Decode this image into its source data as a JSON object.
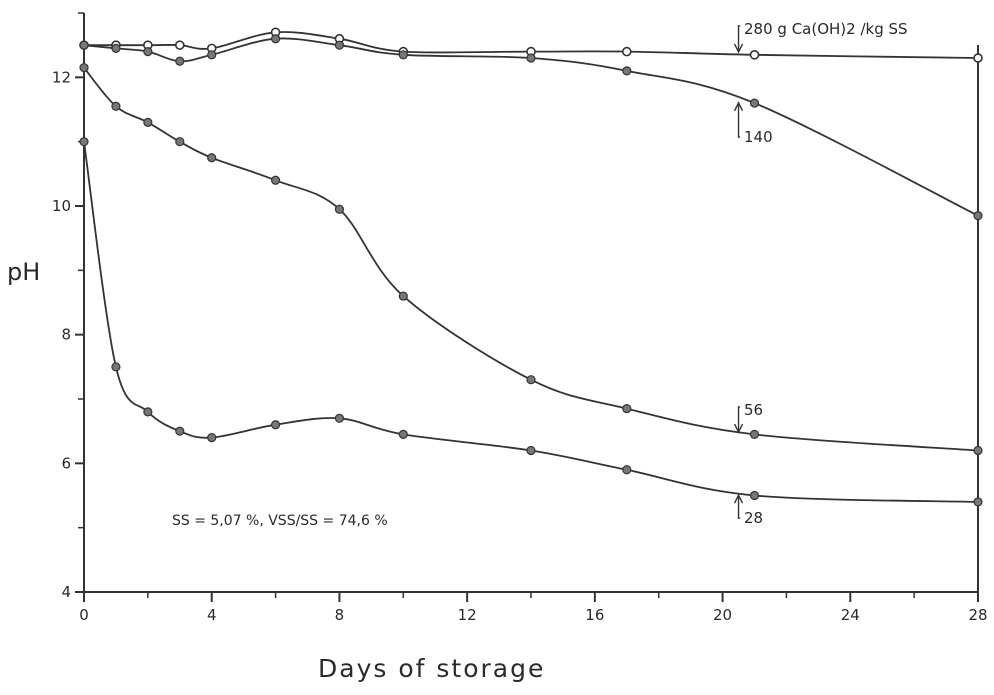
{
  "chart_data": {
    "type": "line",
    "xlabel": "Days of storage",
    "ylabel": "pH",
    "xlim": [
      0,
      28
    ],
    "ylim": [
      4,
      13
    ],
    "x_ticks": [
      0,
      4,
      8,
      12,
      16,
      20,
      24,
      28
    ],
    "x_minor_ticks": [
      2,
      6,
      10,
      14,
      18,
      22,
      26
    ],
    "y_ticks": [
      4,
      6,
      8,
      10,
      12
    ],
    "y_minor_ticks": [
      5,
      7,
      9,
      11,
      13
    ],
    "grid": false,
    "annotation": "SS = 5,07 %, VSS/SS = 74,6 %",
    "series": [
      {
        "name": "280 g Ca(OH)2 /kg SS",
        "marker": "open",
        "x": [
          0,
          1,
          2,
          3,
          4,
          6,
          8,
          10,
          14,
          17,
          21,
          28
        ],
        "y": [
          12.5,
          12.5,
          12.5,
          12.5,
          12.45,
          12.7,
          12.6,
          12.4,
          12.4,
          12.4,
          12.35,
          12.3
        ]
      },
      {
        "name": "140",
        "marker": "filled",
        "x": [
          0,
          1,
          2,
          3,
          4,
          6,
          8,
          10,
          14,
          17,
          21,
          28
        ],
        "y": [
          12.5,
          12.45,
          12.4,
          12.25,
          12.35,
          12.6,
          12.5,
          12.35,
          12.3,
          12.1,
          11.6,
          9.85
        ]
      },
      {
        "name": "56",
        "marker": "filled",
        "x": [
          0,
          1,
          2,
          3,
          4,
          6,
          8,
          10,
          14,
          17,
          21,
          28
        ],
        "y": [
          12.15,
          11.55,
          11.3,
          11.0,
          10.75,
          10.4,
          9.95,
          8.6,
          7.3,
          6.85,
          6.45,
          6.2
        ]
      },
      {
        "name": "28",
        "marker": "filled",
        "x": [
          0,
          1,
          2,
          3,
          4,
          6,
          8,
          10,
          14,
          17,
          21,
          28
        ],
        "y": [
          11.0,
          7.5,
          6.8,
          6.5,
          6.4,
          6.6,
          6.7,
          6.45,
          6.2,
          5.9,
          5.5,
          5.4
        ]
      }
    ]
  }
}
